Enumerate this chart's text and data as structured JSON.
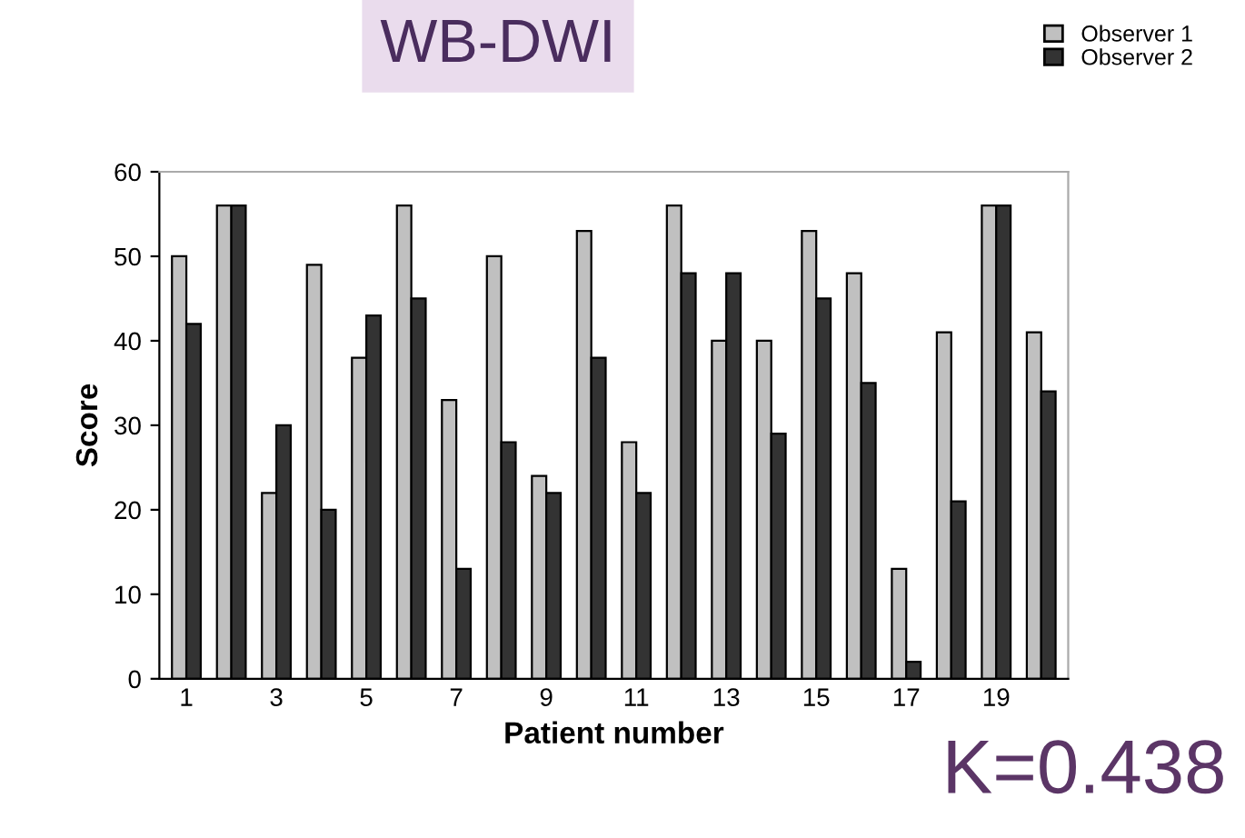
{
  "chart_data": {
    "type": "bar",
    "title": "WB-DWI",
    "xlabel": "Patient number",
    "ylabel": "Score",
    "categories": [
      "1",
      null,
      "3",
      null,
      "5",
      null,
      "7",
      null,
      "9",
      null,
      "11",
      null,
      "13",
      null,
      "15",
      null,
      "17",
      null,
      "19",
      null
    ],
    "series": [
      {
        "name": "Observer 1",
        "color": "#c0c0c0",
        "values": [
          50,
          56,
          22,
          49,
          38,
          56,
          33,
          50,
          24,
          53,
          28,
          56,
          40,
          40,
          53,
          48,
          13,
          41,
          56,
          41
        ]
      },
      {
        "name": "Observer 2",
        "color": "#333333",
        "values": [
          42,
          56,
          30,
          20,
          43,
          45,
          13,
          28,
          22,
          38,
          22,
          48,
          48,
          29,
          45,
          35,
          2,
          21,
          56,
          34
        ]
      }
    ],
    "ylim": [
      0,
      60
    ],
    "yticks": [
      0,
      10,
      20,
      30,
      40,
      50,
      60
    ],
    "grid": false,
    "legend": "top right",
    "annotations": [
      "K=0.438"
    ]
  }
}
